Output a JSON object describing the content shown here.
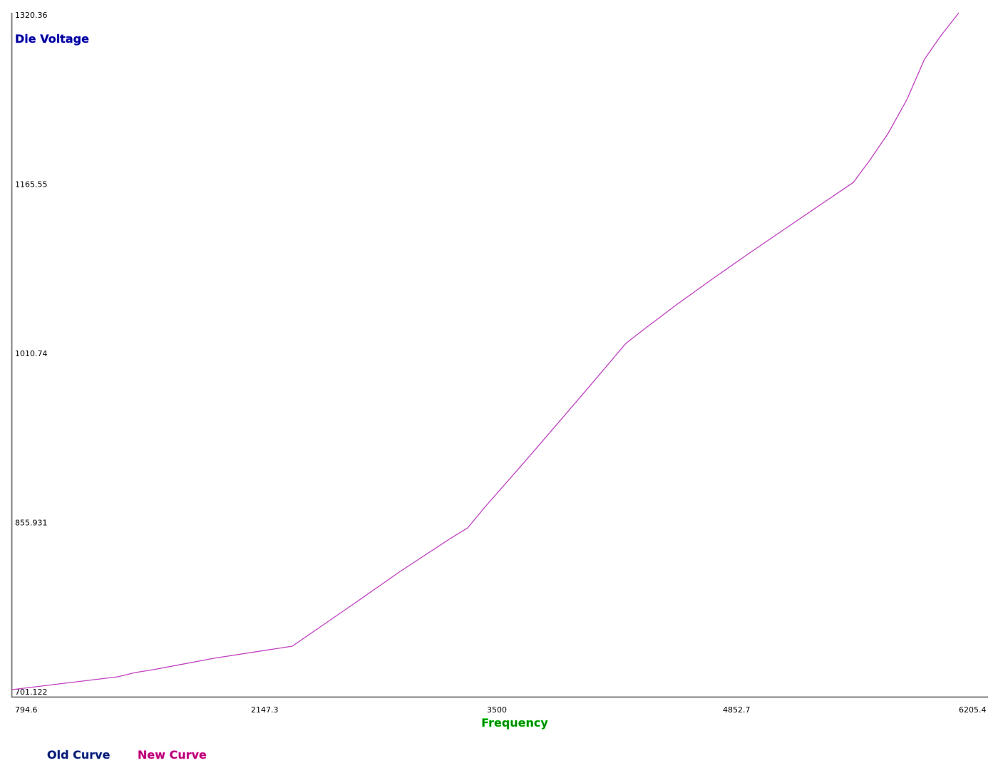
{
  "chart_data": {
    "type": "line",
    "title": "",
    "xlabel": "Frequency",
    "ylabel": "Die Voltage",
    "xlim": [
      794.6,
      6205.4
    ],
    "ylim": [
      701.122,
      1320.36
    ],
    "x_ticks": [
      "794.6",
      "2147.3",
      "3500",
      "4852.7",
      "6205.4"
    ],
    "y_ticks": [
      "701.122",
      "855.931",
      "1010.74",
      "1165.55",
      "1320.36"
    ],
    "grid": false,
    "legend_placement": "bottom-left",
    "legend": [
      {
        "name": "Old Curve",
        "color": "#0a1a6e"
      },
      {
        "name": "New Curve",
        "color": "#b0006e"
      }
    ],
    "series": [
      {
        "name": "New Curve",
        "color": "#c040c0",
        "x": [
          794.6,
          1403.5,
          1505.7,
          1607.9,
          1955.2,
          2404.8,
          2588.7,
          2772.6,
          3017.8,
          3303.8,
          3410.1,
          3508.2,
          3712.5,
          3916.8,
          4113,
          4317.3,
          4427.7,
          4611.6,
          4815.9,
          5020.2,
          5224.6,
          5428.9,
          5621,
          5715,
          5821.2,
          5927.5,
          6029.7,
          6123.7,
          6225.8
        ],
        "y": [
          707.6,
          719.4,
          723.3,
          725.9,
          736.3,
          747.4,
          767.6,
          787.8,
          815.2,
          845.2,
          855.6,
          874.5,
          911.6,
          949.4,
          985.9,
          1024.4,
          1038.1,
          1060.3,
          1083.7,
          1106.5,
          1128.7,
          1150.9,
          1171.7,
          1191.9,
          1216.7,
          1247.3,
          1284.5,
          1306,
          1326.9
        ]
      }
    ]
  }
}
